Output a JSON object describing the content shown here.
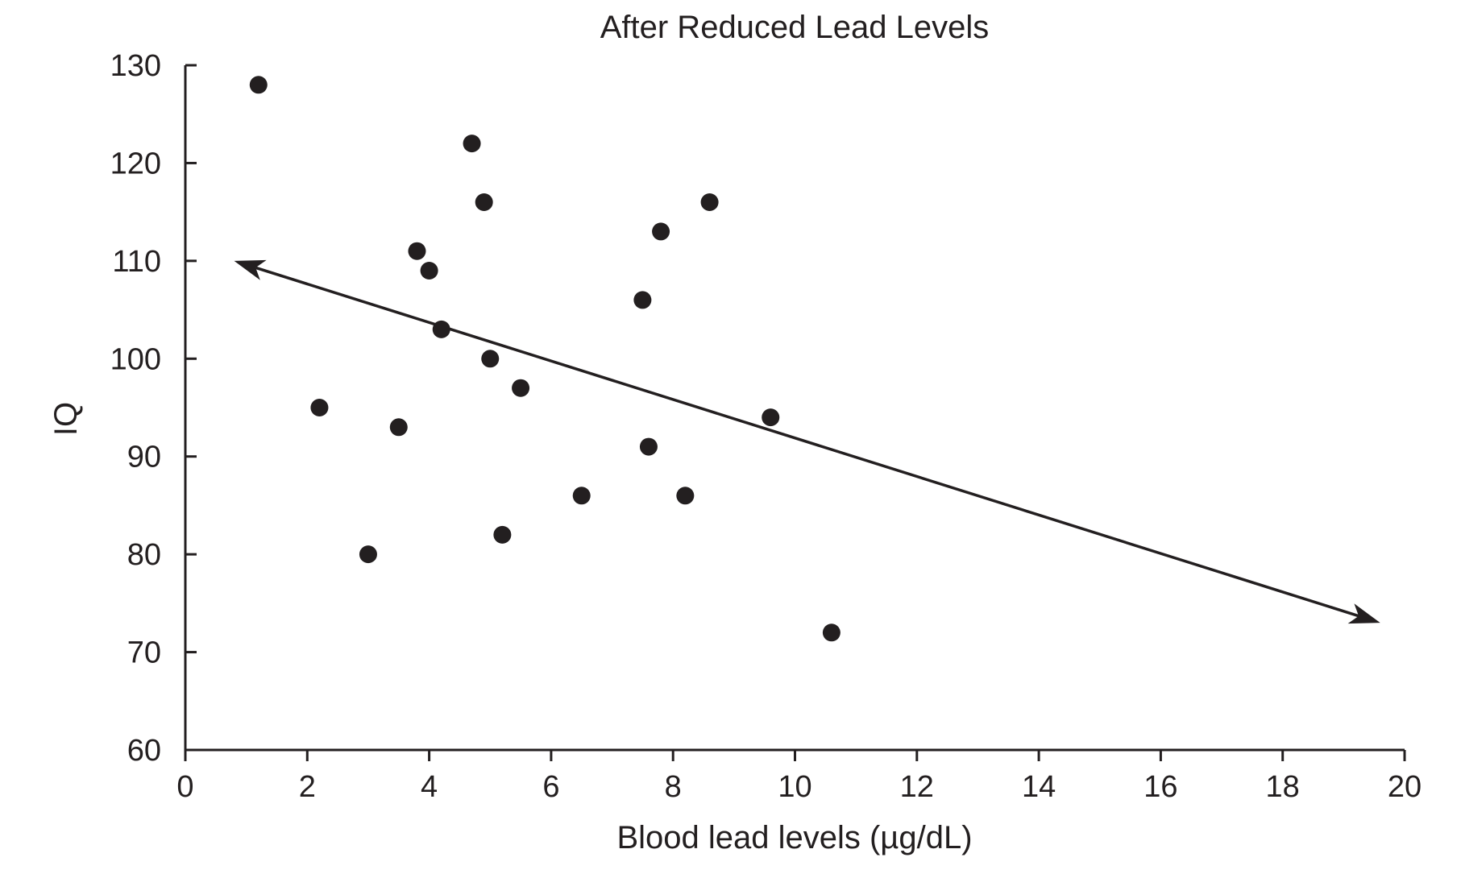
{
  "chart_data": {
    "type": "scatter",
    "title": "After Reduced Lead Levels",
    "xlabel": "Blood lead levels (µg/dL)",
    "ylabel": "IQ",
    "xlim": [
      0,
      20
    ],
    "ylim": [
      60,
      130
    ],
    "x_ticks": [
      0,
      2,
      4,
      6,
      8,
      10,
      12,
      14,
      16,
      18,
      20
    ],
    "y_ticks": [
      60,
      70,
      80,
      90,
      100,
      110,
      120,
      130
    ],
    "grid": false,
    "series": [
      {
        "points": [
          {
            "x": 1.2,
            "y": 128
          },
          {
            "x": 2.2,
            "y": 95
          },
          {
            "x": 3.0,
            "y": 80
          },
          {
            "x": 3.5,
            "y": 93
          },
          {
            "x": 3.8,
            "y": 111
          },
          {
            "x": 4.0,
            "y": 109
          },
          {
            "x": 4.2,
            "y": 103
          },
          {
            "x": 4.7,
            "y": 122
          },
          {
            "x": 4.9,
            "y": 116
          },
          {
            "x": 5.0,
            "y": 100
          },
          {
            "x": 5.2,
            "y": 82
          },
          {
            "x": 5.5,
            "y": 97
          },
          {
            "x": 6.5,
            "y": 86
          },
          {
            "x": 7.5,
            "y": 106
          },
          {
            "x": 7.6,
            "y": 91
          },
          {
            "x": 7.8,
            "y": 113
          },
          {
            "x": 8.2,
            "y": 86
          },
          {
            "x": 8.6,
            "y": 116
          },
          {
            "x": 9.6,
            "y": 94
          },
          {
            "x": 10.6,
            "y": 72
          }
        ]
      }
    ],
    "trend_line": {
      "start": {
        "x": 0.8,
        "y": 110
      },
      "end": {
        "x": 19.6,
        "y": 73
      },
      "arrows": "both"
    }
  }
}
